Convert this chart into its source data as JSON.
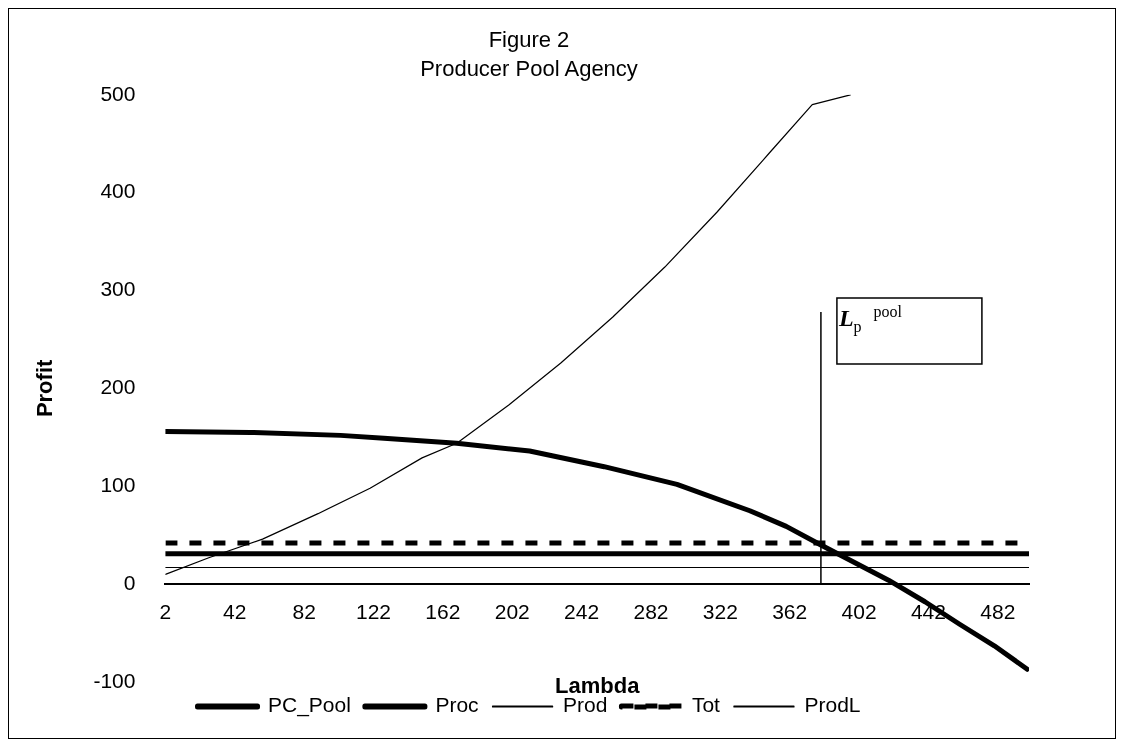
{
  "chart_data": {
    "type": "line",
    "title": "Figure 2",
    "subtitle": "Producer Pool Agency",
    "xlabel": "Lambda",
    "ylabel": "Profit",
    "xlim": [
      2,
      500
    ],
    "xticks": [
      2,
      42,
      82,
      122,
      162,
      202,
      242,
      282,
      322,
      362,
      402,
      442,
      482
    ],
    "ylim": [
      -100,
      500
    ],
    "yticks": [
      -100,
      0,
      100,
      200,
      300,
      400,
      500
    ],
    "grid": false,
    "legend": "bottom",
    "marker": "none",
    "series": [
      {
        "name": "PC_Pool",
        "color": "#000000",
        "x": [
          2,
          51,
          103,
          128,
          170,
          212,
          255,
          297,
          339,
          360,
          380,
          419,
          440,
          460,
          480,
          499
        ],
        "values": [
          156,
          155,
          152,
          149,
          144,
          136,
          120,
          102,
          75,
          59,
          40,
          4,
          -18,
          -41,
          -63,
          -87
        ]
      },
      {
        "name": "Proc",
        "color": "#000000",
        "x": [
          2,
          500
        ],
        "values": [
          31,
          31
        ]
      },
      {
        "name": "Prod",
        "color": "#000000",
        "x": [
          2,
          27,
          58,
          90,
          120,
          150,
          170,
          200,
          230,
          260,
          290,
          320,
          350,
          375,
          397
        ],
        "values": [
          10,
          27,
          46,
          72,
          98,
          129,
          144,
          183,
          226,
          273,
          324,
          380,
          440,
          490,
          500
        ]
      },
      {
        "name": "Tot",
        "color": "#000000",
        "line_style": "dashed",
        "x": [
          2,
          500
        ],
        "values": [
          42,
          42
        ]
      },
      {
        "name": "ProdL",
        "color": "#000000",
        "x": [
          2,
          500
        ],
        "values": [
          17,
          17
        ]
      }
    ],
    "ref_lines": [
      {
        "axis": "x",
        "value": 380,
        "label": "L$_{p}$$^{pool}$",
        "color": "#000000"
      }
    ]
  }
}
